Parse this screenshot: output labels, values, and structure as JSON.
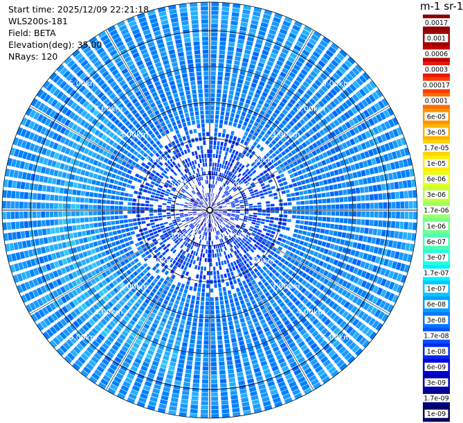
{
  "info": {
    "start_time": "Start time: 2025/12/09 22:21:18",
    "device": "WLS200s-181",
    "field": "Field: BETA",
    "elevation": "Elevation(deg): 35.00",
    "nrays": "NRays: 120"
  },
  "colorbar": {
    "title": "m-1 sr-1",
    "levels": [
      "0.0017",
      "0.001",
      "0.0006",
      "0.0003",
      "0.00017",
      "0.0001",
      "6e-05",
      "3e-05",
      "1.7e-05",
      "1e-05",
      "6e-06",
      "3e-06",
      "1.7e-06",
      "1e-06",
      "6e-07",
      "3e-07",
      "1.7e-07",
      "1e-07",
      "6e-08",
      "3e-08",
      "1.7e-08",
      "1e-08",
      "6e-09",
      "3e-09",
      "1.7e-09",
      "1e-09"
    ],
    "colors": [
      "#8b0000",
      "#a00000",
      "#c00000",
      "#e61a0a",
      "#ff3c00",
      "#ff6a00",
      "#ff9400",
      "#ffb400",
      "#ffd400",
      "#ffee00",
      "#e6ff1a",
      "#c0ff40",
      "#9aff66",
      "#74ff8c",
      "#4cffb4",
      "#26ffdc",
      "#00f0ff",
      "#00c8ff",
      "#00a0ff",
      "#0078ff",
      "#0050ff",
      "#0028f0",
      "#0000d8",
      "#0000b0",
      "#000088",
      "#000060"
    ]
  },
  "chart_data": {
    "type": "heatmap",
    "projection": "polar-ppi",
    "field": "BETA",
    "units": "m-1 sr-1",
    "nrays": 120,
    "elevation_deg": 35.0,
    "range_rings_km": [
      1,
      2,
      3,
      4,
      5
    ],
    "ring_labels": [
      "1.00km",
      "2.00km",
      "3.00km",
      "4.00km",
      "5.00km"
    ],
    "max_range_km": 5.8,
    "grid": true,
    "colorbar_placement": "right"
  }
}
